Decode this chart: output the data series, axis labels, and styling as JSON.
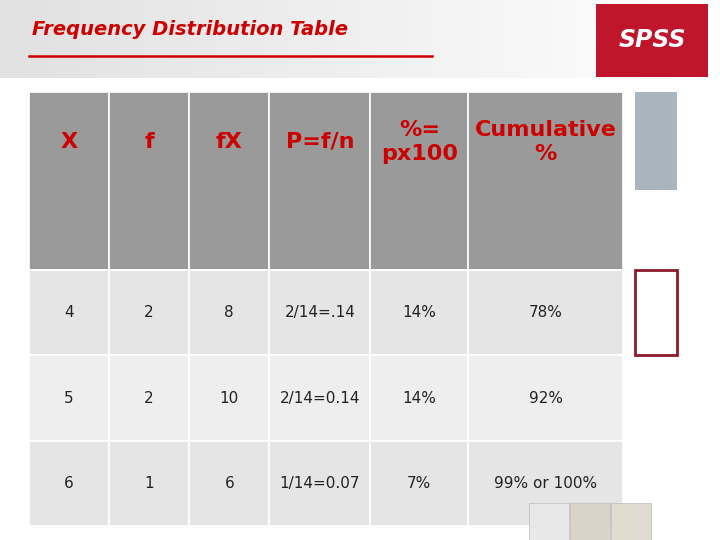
{
  "title": "Frequency Distribution Table",
  "title_color": "#cc0000",
  "title_fontsize": 14,
  "spss_bg_color": "#c0162c",
  "spss_text": "SPSS",
  "header_bg_color": "#9a9a9a",
  "header_text_color": "#cc0000",
  "header_fontsize": 16,
  "headers": [
    "X",
    "f",
    "fX",
    "P=f/n",
    "%=\npx100",
    "Cumulative\n%"
  ],
  "data_rows": [
    [
      "4",
      "2",
      "8",
      "2/14=.14",
      "14%",
      "78%"
    ],
    [
      "5",
      "2",
      "10",
      "2/14=0.14",
      "14%",
      "92%"
    ],
    [
      "6",
      "1",
      "6",
      "1/14=0.07",
      "7%",
      "99% or 100%"
    ]
  ],
  "row_colors": [
    "#e5e5e5",
    "#eeeeee",
    "#e5e5e5"
  ],
  "data_fontsize": 11,
  "data_text_color": "#222222",
  "underline_color": "#cc0000",
  "top_bg_color": "#c8cfd6",
  "sidebar_blue": "#a8b4be",
  "sidebar_red_border": "#8b1a2a",
  "bottom_sq_colors": [
    "#e8e8e8",
    "#d8d5c8",
    "#e0ddd0"
  ]
}
